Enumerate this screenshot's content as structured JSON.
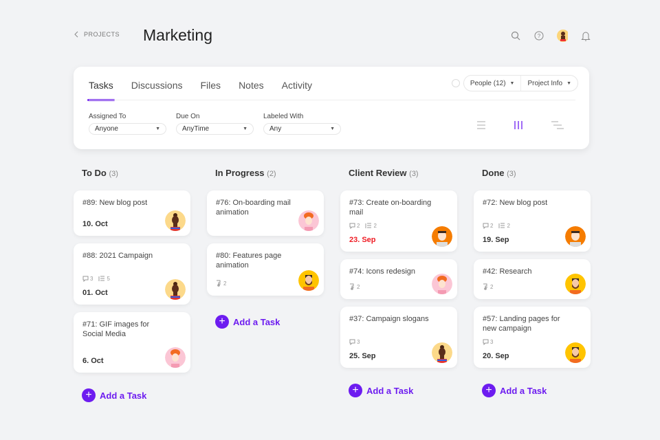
{
  "header": {
    "back_label": "PROJECTS",
    "title": "Marketing",
    "icons": [
      "search-icon",
      "help-icon",
      "avatar",
      "bell-icon"
    ]
  },
  "tabs": [
    {
      "label": "Tasks",
      "active": true
    },
    {
      "label": "Discussions"
    },
    {
      "label": "Files"
    },
    {
      "label": "Notes"
    },
    {
      "label": "Activity"
    }
  ],
  "people_label": "People (12)",
  "project_info_label": "Project Info",
  "filters": [
    {
      "label": "Assigned To",
      "value": "Anyone"
    },
    {
      "label": "Due On",
      "value": "AnyTime"
    },
    {
      "label": "Labeled With",
      "value": "Any"
    }
  ],
  "view_modes": [
    {
      "icon": "list-view-icon"
    },
    {
      "icon": "board-view-icon",
      "active": true
    },
    {
      "icon": "gantt-view-icon"
    }
  ],
  "accent": "#6d1cf0",
  "overdue_color": "#ef1c24",
  "add_task_label": "Add a Task",
  "columns": [
    {
      "title": "To Do",
      "count": "(3)",
      "cards": [
        {
          "title": "#89: New blog post",
          "date": "10. Oct",
          "avatar": "woman"
        },
        {
          "title": "#88: 2021 Campaign",
          "comments": "3",
          "checklist": "5",
          "date": "01. Oct",
          "avatar": "woman"
        },
        {
          "title": "#71: GIF images for Social Media",
          "date": "6. Oct",
          "avatar": "redhead"
        }
      ]
    },
    {
      "title": "In Progress",
      "count": "(2)",
      "cards": [
        {
          "title": "#76: On-boarding mail animation",
          "avatar": "redhead"
        },
        {
          "title": "#80: Features page animation",
          "subtasks": "2",
          "avatar": "bearded"
        }
      ]
    },
    {
      "title": "Client Review",
      "count": "(3)",
      "cards": [
        {
          "title": "#73: Create on-boarding mail",
          "comments": "2",
          "checklist": "2",
          "date": "23. Sep",
          "overdue": true,
          "avatar": "man"
        },
        {
          "title": "#74: Icons redesign",
          "subtasks": "2",
          "avatar": "redhead"
        },
        {
          "title": "#37: Campaign slogans",
          "comments": "3",
          "date": "25. Sep",
          "avatar": "woman"
        }
      ]
    },
    {
      "title": "Done",
      "count": "(3)",
      "cards": [
        {
          "title": "#72: New blog post",
          "comments": "2",
          "checklist": "2",
          "date": "19. Sep",
          "avatar": "man"
        },
        {
          "title": "#42: Research",
          "subtasks": "2",
          "avatar": "bearded"
        },
        {
          "title": "#57: Landing pages for new campaign",
          "comments": "3",
          "date": "20. Sep",
          "avatar": "bearded"
        }
      ]
    }
  ]
}
